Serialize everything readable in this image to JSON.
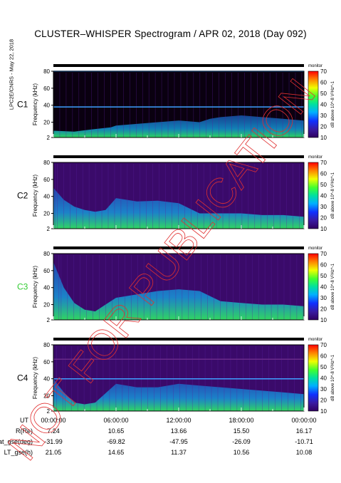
{
  "figure": {
    "title": "CLUSTER–WHISPER Spectrogram / APR 02, 2018 (Day 092)",
    "side_note": "LPC2E/CNRS - May 22, 2018",
    "watermark": "NOT FOR PUBLICATION"
  },
  "chart_data": [
    {
      "type": "heatmap",
      "satellite": "C1",
      "satellite_color": "#000000",
      "ylabel": "Frequency (kHz)",
      "yticks": [
        2,
        20,
        40,
        60,
        80
      ],
      "ylim": [
        2,
        80
      ],
      "xlim": [
        "00:00:00",
        "24:00:00"
      ],
      "colorbar": {
        "title": "dB above 10^-8 V²Hz^-1",
        "ticks": [
          10,
          20,
          30,
          40,
          50,
          60,
          70
        ],
        "range": [
          10,
          70
        ]
      },
      "status_label": "monitor",
      "lines": [
        {
          "freq_khz": 38,
          "color": "#3ea0ff"
        },
        {
          "freq_khz": 80,
          "color": "#3ea0ff"
        }
      ],
      "emission": [
        [
          0,
          10
        ],
        [
          2,
          9
        ],
        [
          4,
          12
        ],
        [
          5.5,
          14
        ],
        [
          6,
          16
        ],
        [
          8,
          18
        ],
        [
          10,
          20
        ],
        [
          12,
          22
        ],
        [
          14,
          20
        ],
        [
          15,
          24
        ],
        [
          16,
          26
        ],
        [
          18,
          28
        ],
        [
          20,
          26
        ],
        [
          22,
          24
        ],
        [
          24,
          22
        ]
      ]
    },
    {
      "type": "heatmap",
      "satellite": "C2",
      "satellite_color": "#000000",
      "ylabel": "Frequency (kHz)",
      "yticks": [
        2,
        20,
        40,
        60,
        80
      ],
      "ylim": [
        2,
        80
      ],
      "xlim": [
        "00:00:00",
        "24:00:00"
      ],
      "colorbar": {
        "title": "dB above 10^-8 V²Hz^-1",
        "ticks": [
          10,
          20,
          30,
          40,
          50,
          60,
          70
        ],
        "range": [
          10,
          70
        ]
      },
      "status_label": "monitor",
      "lines": [],
      "emission": [
        [
          0,
          50
        ],
        [
          1,
          36
        ],
        [
          2,
          28
        ],
        [
          3,
          24
        ],
        [
          4,
          22
        ],
        [
          5,
          24
        ],
        [
          6,
          38
        ],
        [
          8,
          34
        ],
        [
          10,
          35
        ],
        [
          12,
          32
        ],
        [
          13,
          26
        ],
        [
          14,
          20
        ],
        [
          16,
          20
        ],
        [
          18,
          20
        ],
        [
          20,
          18
        ],
        [
          22,
          18
        ],
        [
          24,
          16
        ]
      ]
    },
    {
      "type": "heatmap",
      "satellite": "C3",
      "satellite_color": "#33cc33",
      "ylabel": "Frequency (kHz)",
      "yticks": [
        2,
        20,
        40,
        60,
        80
      ],
      "ylim": [
        2,
        80
      ],
      "xlim": [
        "00:00:00",
        "24:00:00"
      ],
      "colorbar": {
        "title": "dB above 10^-8 V²Hz^-1",
        "ticks": [
          10,
          20,
          30,
          40,
          50,
          60,
          70
        ],
        "range": [
          10,
          70
        ]
      },
      "status_label": "monitor",
      "lines": [],
      "emission": [
        [
          0,
          70
        ],
        [
          1,
          40
        ],
        [
          2,
          22
        ],
        [
          3,
          14
        ],
        [
          4,
          12
        ],
        [
          5,
          20
        ],
        [
          6,
          28
        ],
        [
          8,
          32
        ],
        [
          10,
          36
        ],
        [
          12,
          38
        ],
        [
          14,
          36
        ],
        [
          16,
          24
        ],
        [
          18,
          22
        ],
        [
          20,
          20
        ],
        [
          22,
          20
        ],
        [
          24,
          18
        ]
      ]
    },
    {
      "type": "heatmap",
      "satellite": "C4",
      "satellite_color": "#000000",
      "ylabel": "Frequency (kHz)",
      "yticks": [
        2,
        20,
        40,
        60,
        80
      ],
      "ylim": [
        2,
        80
      ],
      "xlim": [
        "00:00:00",
        "24:00:00"
      ],
      "colorbar": {
        "title": "dB above 10^-8 V²Hz^-1",
        "ticks": [
          10,
          20,
          30,
          40,
          50,
          60,
          70
        ],
        "range": [
          10,
          70
        ]
      },
      "status_label": "monitor",
      "lines": [
        {
          "freq_khz": 63,
          "color": "#6a2a8a"
        },
        {
          "freq_khz": 40,
          "color": "#3ea0ff"
        }
      ],
      "emission": [
        [
          0,
          40
        ],
        [
          1,
          24
        ],
        [
          2,
          12
        ],
        [
          3,
          10
        ],
        [
          4,
          12
        ],
        [
          6,
          34
        ],
        [
          8,
          30
        ],
        [
          10,
          30
        ],
        [
          12,
          34
        ],
        [
          14,
          32
        ],
        [
          16,
          30
        ],
        [
          18,
          28
        ],
        [
          20,
          26
        ],
        [
          22,
          24
        ],
        [
          24,
          22
        ]
      ]
    }
  ],
  "time_axis": {
    "label": "UT",
    "ticks": [
      "00:00:00",
      "06:00:00",
      "12:00:00",
      "18:00:00",
      "00:00:00"
    ]
  },
  "ephemeris": [
    {
      "label": "R(Re)",
      "values": [
        "7.24",
        "10.65",
        "13.66",
        "15.50",
        "16.17"
      ]
    },
    {
      "label": "Lat_gse(deg)",
      "values": [
        "-31.99",
        "-69.82",
        "-47.95",
        "-26.09",
        "-10.71"
      ]
    },
    {
      "label": "LT_gse(h)",
      "values": [
        "21.05",
        "14.65",
        "11.37",
        "10.56",
        "10.08"
      ]
    }
  ]
}
